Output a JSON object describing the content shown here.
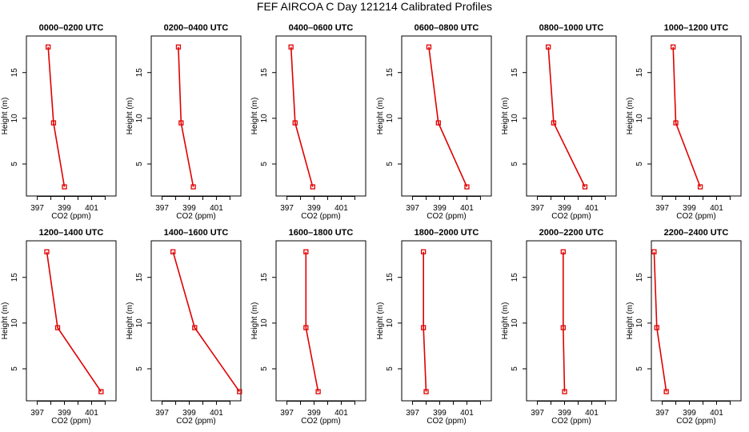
{
  "suptitle": "FEF AIRCOA C  Day 121214  Calibrated Profiles",
  "chart_data": [
    {
      "type": "line",
      "title": "0000–0200 UTC",
      "xlabel": "CO2 (ppm)",
      "ylabel": "Height (m)",
      "xlim": [
        396.2,
        402.8
      ],
      "ylim": [
        1.5,
        19
      ],
      "xticks": [
        397,
        399,
        401
      ],
      "yticks": [
        5,
        10,
        15
      ],
      "x": [
        397.8,
        398.2,
        399.0
      ],
      "y": [
        17.8,
        9.5,
        2.5
      ]
    },
    {
      "type": "line",
      "title": "0200–0400 UTC",
      "xlabel": "CO2 (ppm)",
      "ylabel": "Height (m)",
      "xlim": [
        396.2,
        402.8
      ],
      "ylim": [
        1.5,
        19
      ],
      "xticks": [
        397,
        399,
        401
      ],
      "yticks": [
        5,
        10,
        15
      ],
      "x": [
        398.2,
        398.4,
        399.3
      ],
      "y": [
        17.8,
        9.5,
        2.5
      ]
    },
    {
      "type": "line",
      "title": "0400–0600 UTC",
      "xlabel": "CO2 (ppm)",
      "ylabel": "Height (m)",
      "xlim": [
        396.2,
        402.8
      ],
      "ylim": [
        1.5,
        19
      ],
      "xticks": [
        397,
        399,
        401
      ],
      "yticks": [
        5,
        10,
        15
      ],
      "x": [
        397.3,
        397.6,
        398.9
      ],
      "y": [
        17.8,
        9.5,
        2.5
      ]
    },
    {
      "type": "line",
      "title": "0600–0800 UTC",
      "xlabel": "CO2 (ppm)",
      "ylabel": "Height (m)",
      "xlim": [
        396.2,
        402.8
      ],
      "ylim": [
        1.5,
        19
      ],
      "xticks": [
        397,
        399,
        401
      ],
      "yticks": [
        5,
        10,
        15
      ],
      "x": [
        398.2,
        398.9,
        401.0
      ],
      "y": [
        17.8,
        9.5,
        2.5
      ]
    },
    {
      "type": "line",
      "title": "0800–1000 UTC",
      "xlabel": "CO2 (ppm)",
      "ylabel": "Height (m)",
      "xlim": [
        396.2,
        402.8
      ],
      "ylim": [
        1.5,
        19
      ],
      "xticks": [
        397,
        399,
        401
      ],
      "yticks": [
        5,
        10,
        15
      ],
      "x": [
        397.8,
        398.2,
        400.5
      ],
      "y": [
        17.8,
        9.5,
        2.5
      ]
    },
    {
      "type": "line",
      "title": "1000–1200 UTC",
      "xlabel": "CO2 (ppm)",
      "ylabel": "Height (m)",
      "xlim": [
        396.2,
        402.8
      ],
      "ylim": [
        1.5,
        19
      ],
      "xticks": [
        397,
        399,
        401
      ],
      "yticks": [
        5,
        10,
        15
      ],
      "x": [
        397.8,
        398.0,
        399.8
      ],
      "y": [
        17.8,
        9.5,
        2.5
      ]
    },
    {
      "type": "line",
      "title": "1200–1400 UTC",
      "xlabel": "CO2 (ppm)",
      "ylabel": "Height (m)",
      "xlim": [
        396.2,
        402.8
      ],
      "ylim": [
        1.5,
        19
      ],
      "xticks": [
        397,
        399,
        401
      ],
      "yticks": [
        5,
        10,
        15
      ],
      "x": [
        397.7,
        398.5,
        401.7
      ],
      "y": [
        17.8,
        9.5,
        2.5
      ]
    },
    {
      "type": "line",
      "title": "1400–1600 UTC",
      "xlabel": "CO2 (ppm)",
      "ylabel": "Height (m)",
      "xlim": [
        396.2,
        402.8
      ],
      "ylim": [
        1.5,
        19
      ],
      "xticks": [
        397,
        399,
        401
      ],
      "yticks": [
        5,
        10,
        15
      ],
      "x": [
        397.8,
        399.4,
        402.7
      ],
      "y": [
        17.8,
        9.5,
        2.5
      ]
    },
    {
      "type": "line",
      "title": "1600–1800 UTC",
      "xlabel": "CO2 (ppm)",
      "ylabel": "Height (m)",
      "xlim": [
        396.2,
        402.8
      ],
      "ylim": [
        1.5,
        19
      ],
      "xticks": [
        397,
        399,
        401
      ],
      "yticks": [
        5,
        10,
        15
      ],
      "x": [
        398.4,
        398.4,
        399.3
      ],
      "y": [
        17.8,
        9.5,
        2.5
      ]
    },
    {
      "type": "line",
      "title": "1800–2000 UTC",
      "xlabel": "CO2 (ppm)",
      "ylabel": "Height (m)",
      "xlim": [
        396.2,
        402.8
      ],
      "ylim": [
        1.5,
        19
      ],
      "xticks": [
        397,
        399,
        401
      ],
      "yticks": [
        5,
        10,
        15
      ],
      "x": [
        397.8,
        397.8,
        398.0
      ],
      "y": [
        17.8,
        9.5,
        2.5
      ]
    },
    {
      "type": "line",
      "title": "2000–2200 UTC",
      "xlabel": "CO2 (ppm)",
      "ylabel": "Height (m)",
      "xlim": [
        396.2,
        402.8
      ],
      "ylim": [
        1.5,
        19
      ],
      "xticks": [
        397,
        399,
        401
      ],
      "yticks": [
        5,
        10,
        15
      ],
      "x": [
        398.9,
        398.9,
        399.0
      ],
      "y": [
        17.8,
        9.5,
        2.5
      ]
    },
    {
      "type": "line",
      "title": "2200–2400 UTC",
      "xlabel": "CO2 (ppm)",
      "ylabel": "Height (m)",
      "xlim": [
        396.2,
        402.8
      ],
      "ylim": [
        1.5,
        19
      ],
      "xticks": [
        397,
        399,
        401
      ],
      "yticks": [
        5,
        10,
        15
      ],
      "x": [
        396.4,
        396.6,
        397.3
      ],
      "y": [
        17.8,
        9.5,
        2.5
      ]
    }
  ]
}
